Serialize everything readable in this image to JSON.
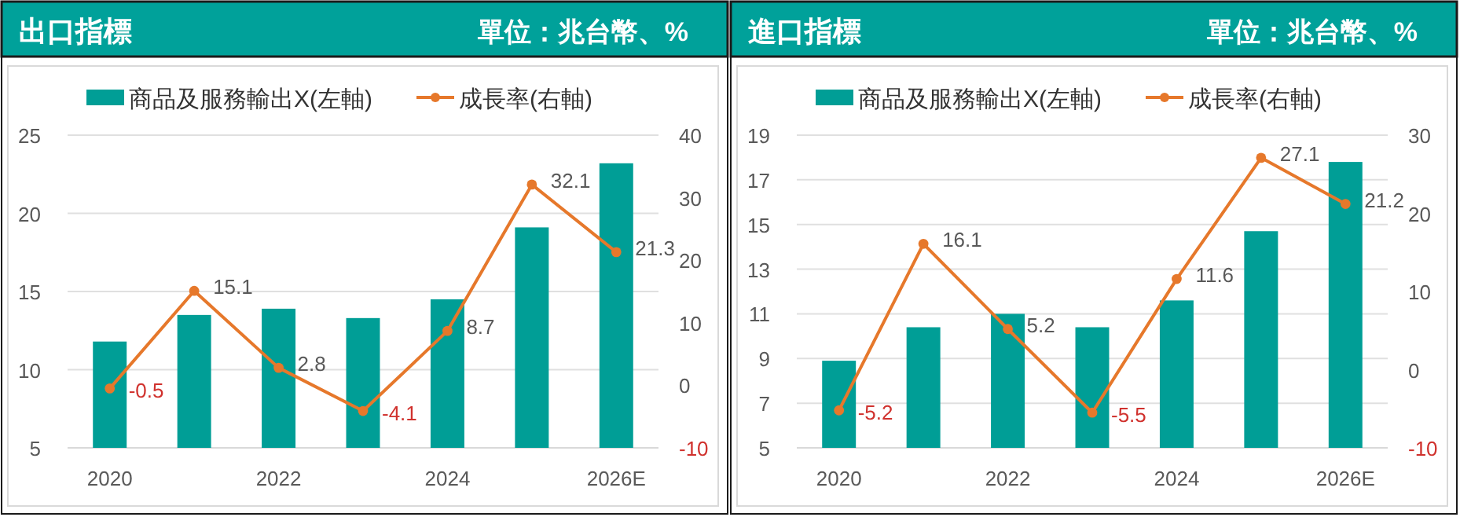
{
  "chart_data": [
    {
      "type": "bar",
      "title": "出口指標",
      "subtitle": "單位：兆台幣、%",
      "categories": [
        "2020",
        null,
        "2022",
        null,
        "2024",
        null,
        "2026E"
      ],
      "series": [
        {
          "name": "商品及服務輸出X(左軸)",
          "color": "#009e96",
          "values": [
            11.8,
            13.5,
            13.9,
            13.3,
            14.5,
            19.1,
            23.2
          ]
        },
        {
          "name": "成長率(右軸)",
          "type": "line",
          "axis": "y2",
          "color": "#e6782b",
          "marker": "circle",
          "values": [
            -0.5,
            15.1,
            2.8,
            -4.1,
            8.7,
            32.1,
            21.3
          ],
          "value_labels": [
            "-0.5",
            "15.1",
            "2.8",
            "-4.1",
            "8.7",
            "32.1",
            "21.3"
          ]
        }
      ],
      "ylim": [
        5,
        25
      ],
      "yticks": [
        5,
        10,
        15,
        20,
        25
      ],
      "y2lim": [
        -10,
        40
      ],
      "y2ticks": [
        -10,
        0,
        10,
        20,
        30,
        40
      ],
      "grid": "y",
      "legend": "top"
    },
    {
      "type": "bar",
      "title": "進口指標",
      "subtitle": "單位：兆台幣、%",
      "categories": [
        "2020",
        null,
        "2022",
        null,
        "2024",
        null,
        "2026E"
      ],
      "series": [
        {
          "name": "商品及服務輸出X(左軸)",
          "color": "#009e96",
          "values": [
            8.9,
            10.4,
            11.0,
            10.4,
            11.6,
            14.7,
            17.8
          ]
        },
        {
          "name": "成長率(右軸)",
          "type": "line",
          "axis": "y2",
          "color": "#e6782b",
          "marker": "circle",
          "values": [
            -5.2,
            16.1,
            5.2,
            -5.5,
            11.6,
            27.1,
            21.2
          ],
          "value_labels": [
            "-5.2",
            "16.1",
            "5.2",
            "-5.5",
            "11.6",
            "27.1",
            "21.2"
          ]
        }
      ],
      "ylim": [
        5,
        19
      ],
      "yticks": [
        5,
        7,
        9,
        11,
        13,
        15,
        17,
        19
      ],
      "y2lim": [
        -10,
        30
      ],
      "y2ticks": [
        -10,
        0,
        10,
        20,
        30
      ],
      "grid": "y",
      "legend": "top"
    }
  ]
}
